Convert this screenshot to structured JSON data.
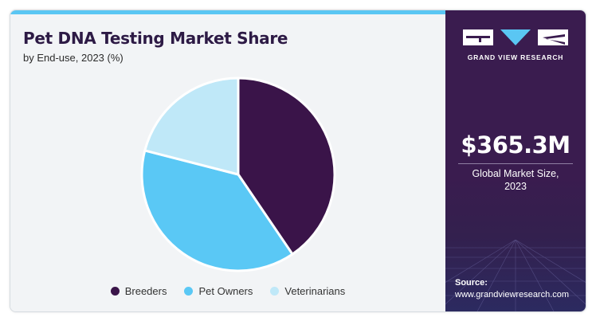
{
  "header": {
    "title": "Pet DNA Testing Market Share",
    "subtitle": "by End-use, 2023 (%)"
  },
  "chart_data": {
    "type": "pie",
    "title": "Pet DNA Testing Market Share",
    "subtitle": "by End-use, 2023 (%)",
    "categories": [
      "Breeders",
      "Pet Owners",
      "Veterinarians"
    ],
    "values": [
      40.5,
      38.5,
      21.0
    ],
    "colors": [
      "#3a1449",
      "#5ac8f5",
      "#bfe8f8"
    ],
    "start_angle_deg": 0,
    "direction": "clockwise",
    "legend_position": "bottom"
  },
  "sidebar": {
    "brand": "GRAND VIEW RESEARCH",
    "market_size": "$365.3M",
    "market_size_label_line1": "Global Market Size,",
    "market_size_label_line2": "2023",
    "source_label": "Source:",
    "source_url": "www.grandviewresearch.com"
  }
}
